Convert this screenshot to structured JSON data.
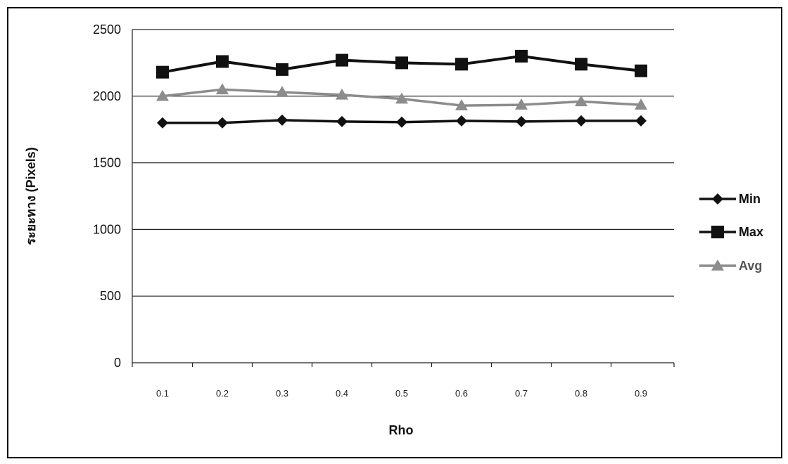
{
  "chart_data": {
    "type": "line",
    "title": "",
    "xlabel": "Rho",
    "ylabel": "ระยะทาง (Pixels)",
    "categories": [
      "0.1",
      "0.2",
      "0.3",
      "0.4",
      "0.5",
      "0.6",
      "0.7",
      "0.8",
      "0.9"
    ],
    "ylim": [
      0,
      2500
    ],
    "yticks": [
      "0",
      "500",
      "1000",
      "1500",
      "2000",
      "2500"
    ],
    "grid": "horizontal",
    "legend": "right",
    "series": [
      {
        "name": "Min",
        "marker": "diamond",
        "color": "#111111",
        "values": [
          1800,
          1800,
          1820,
          1810,
          1805,
          1815,
          1810,
          1815,
          1815
        ]
      },
      {
        "name": "Max",
        "marker": "square",
        "color": "#111111",
        "values": [
          2180,
          2260,
          2200,
          2270,
          2250,
          2240,
          2300,
          2240,
          2190
        ]
      },
      {
        "name": "Avg",
        "marker": "triangle",
        "color": "#8c8c8c",
        "values": [
          2000,
          2050,
          2030,
          2010,
          1980,
          1930,
          1935,
          1960,
          1935
        ]
      }
    ]
  }
}
